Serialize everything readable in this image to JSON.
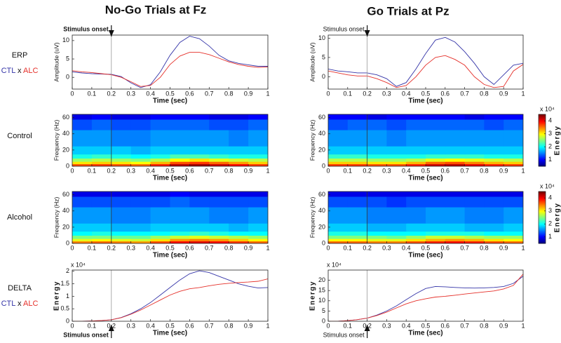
{
  "figure": {
    "titles": [
      "No-Go Trials at Fz",
      "Go Trials at Pz"
    ],
    "row_labels": [
      "ERP",
      "Control",
      "Alcohol",
      "DELTA"
    ],
    "legend_joiner": "x"
  },
  "chart_data": [
    {
      "type": "line",
      "xlabel": "Time (sec)",
      "ylabel": "Amplitude (uV)",
      "x": [
        0,
        0.05,
        0.1,
        0.15,
        0.2,
        0.25,
        0.3,
        0.35,
        0.4,
        0.45,
        0.5,
        0.55,
        0.6,
        0.65,
        0.7,
        0.75,
        0.8,
        0.85,
        0.9,
        0.95,
        1
      ],
      "series": [
        {
          "name": "CTL",
          "color": "#3535a8",
          "values": [
            1.5,
            1.2,
            1.0,
            0.9,
            0.8,
            0.2,
            -1.5,
            -2.8,
            -2.0,
            1.5,
            6,
            9.5,
            11.2,
            10.5,
            8.5,
            6,
            4.5,
            3.8,
            3.4,
            3.0,
            3.0
          ]
        },
        {
          "name": "ALC",
          "color": "#e5302a",
          "values": [
            1.8,
            1.5,
            1.3,
            1.0,
            0.7,
            0.0,
            -1.2,
            -2.5,
            -2.2,
            0,
            3.5,
            5.8,
            6.8,
            6.8,
            6.2,
            5.2,
            4.2,
            3.5,
            3.0,
            2.7,
            2.8
          ]
        }
      ],
      "xlim": [
        0,
        1
      ],
      "xticks": [
        0,
        0.1,
        0.2,
        0.3,
        0.4,
        0.5,
        0.6,
        0.7,
        0.8,
        0.9,
        1
      ],
      "ylim": [
        -3.2,
        11.5
      ],
      "yticks": [
        0,
        5,
        10
      ],
      "vline": 0.2,
      "annotation": {
        "text": "Stimulus onset",
        "side": "top",
        "bold": true
      }
    },
    {
      "type": "line",
      "xlabel": "Time (sec)",
      "ylabel": "Amplitude (uV)",
      "x": [
        0,
        0.05,
        0.1,
        0.15,
        0.2,
        0.25,
        0.3,
        0.35,
        0.4,
        0.45,
        0.5,
        0.55,
        0.6,
        0.65,
        0.7,
        0.75,
        0.8,
        0.85,
        0.9,
        0.95,
        1
      ],
      "series": [
        {
          "color": "#3535a8",
          "values": [
            2,
            1.5,
            1.3,
            1.0,
            1.0,
            0.5,
            -0.5,
            -2.5,
            -1.5,
            2,
            6,
            9.5,
            10.2,
            9,
            6.5,
            3.5,
            0,
            -2,
            0.5,
            3,
            3.5
          ]
        },
        {
          "color": "#e5302a",
          "values": [
            1.5,
            1.0,
            0.5,
            0.2,
            0.2,
            -0.5,
            -1.5,
            -2.8,
            -2.3,
            0,
            3,
            5,
            5.5,
            4.5,
            3,
            0,
            -2,
            -2.8,
            -2.5,
            1.5,
            3.2
          ]
        }
      ],
      "xlim": [
        0,
        1
      ],
      "xticks": [
        0,
        0.1,
        0.2,
        0.3,
        0.4,
        0.5,
        0.6,
        0.7,
        0.8,
        0.9,
        1
      ],
      "ylim": [
        -3.2,
        10.8
      ],
      "yticks": [
        0,
        5,
        10
      ],
      "vline": 0.2,
      "annotation": {
        "text": "Stimulus onset",
        "side": "top",
        "bold": false
      }
    },
    {
      "type": "heatmap",
      "xlabel": "Time (sec)",
      "ylabel": "Frequency (Hz)",
      "colormap": "jet",
      "clim": [
        0.5,
        4.5
      ],
      "x_edges": [
        0,
        0.1,
        0.2,
        0.3,
        0.4,
        0.5,
        0.6,
        0.7,
        0.8,
        0.9,
        1
      ],
      "y_edges": [
        0,
        3,
        6,
        10,
        15,
        25,
        45,
        58,
        64
      ],
      "z": [
        [
          3.7,
          3.8,
          3.7,
          3.6,
          3.9,
          4.3,
          4.4,
          4.2,
          4.0,
          3.8
        ],
        [
          3.1,
          3.2,
          3.1,
          3.0,
          3.3,
          3.7,
          3.8,
          3.6,
          3.4,
          3.2
        ],
        [
          2.6,
          2.7,
          2.6,
          2.5,
          2.7,
          3.0,
          3.1,
          2.9,
          2.8,
          2.7
        ],
        [
          2.1,
          2.2,
          2.1,
          2.0,
          2.1,
          2.3,
          2.3,
          2.2,
          2.1,
          2.1
        ],
        [
          1.8,
          1.8,
          1.8,
          1.7,
          1.8,
          1.8,
          1.8,
          1.8,
          1.8,
          1.8
        ],
        [
          1.6,
          1.6,
          1.5,
          1.5,
          1.6,
          1.6,
          1.6,
          1.6,
          1.5,
          1.6
        ],
        [
          1.3,
          1.4,
          1.3,
          1.3,
          1.4,
          1.4,
          1.4,
          1.3,
          1.3,
          1.4
        ],
        [
          0.9,
          1.0,
          0.9,
          0.9,
          1.0,
          1.0,
          1.0,
          0.9,
          0.9,
          1.0
        ]
      ],
      "xlim": [
        0,
        1
      ],
      "xticks": [
        0,
        0.1,
        0.2,
        0.3,
        0.4,
        0.5,
        0.6,
        0.7,
        0.8,
        0.9,
        1
      ],
      "ylim": [
        0,
        64
      ],
      "yticks": [
        0,
        20,
        40,
        60
      ],
      "vline": 0.2
    },
    {
      "type": "heatmap",
      "xlabel": "Time (sec)",
      "ylabel": "Frequency (Hz)",
      "colormap": "jet",
      "clim": [
        0.5,
        4.5
      ],
      "x_edges": [
        0,
        0.1,
        0.2,
        0.3,
        0.4,
        0.5,
        0.6,
        0.7,
        0.8,
        0.9,
        1
      ],
      "y_edges": [
        0,
        3,
        6,
        10,
        15,
        25,
        45,
        58,
        64
      ],
      "z": [
        [
          3.8,
          3.8,
          3.7,
          3.7,
          3.9,
          4.2,
          4.3,
          4.1,
          3.9,
          3.8
        ],
        [
          3.2,
          3.2,
          3.1,
          3.1,
          3.3,
          3.6,
          3.7,
          3.5,
          3.3,
          3.2
        ],
        [
          2.7,
          2.7,
          2.6,
          2.6,
          2.7,
          2.9,
          3.0,
          2.9,
          2.8,
          2.7
        ],
        [
          2.2,
          2.2,
          2.1,
          2.1,
          2.1,
          2.2,
          2.2,
          2.2,
          2.1,
          2.1
        ],
        [
          1.8,
          1.8,
          1.8,
          1.8,
          1.8,
          1.8,
          1.8,
          1.8,
          1.8,
          1.8
        ],
        [
          1.6,
          1.6,
          1.6,
          1.5,
          1.6,
          1.6,
          1.6,
          1.6,
          1.6,
          1.6
        ],
        [
          1.3,
          1.4,
          1.4,
          1.3,
          1.4,
          1.4,
          1.4,
          1.4,
          1.3,
          1.4
        ],
        [
          1.0,
          1.0,
          0.9,
          1.0,
          1.0,
          1.0,
          1.0,
          0.9,
          1.0,
          1.0
        ]
      ],
      "xlim": [
        0,
        1
      ],
      "xticks": [
        0,
        0.1,
        0.2,
        0.3,
        0.4,
        0.5,
        0.6,
        0.7,
        0.8,
        0.9,
        1
      ],
      "ylim": [
        0,
        64
      ],
      "yticks": [
        0,
        20,
        40,
        60
      ],
      "vline": 0.2,
      "colorbar": {
        "label": "Energy",
        "multiplier": "x 10⁴",
        "ticks": [
          1,
          2,
          3,
          4
        ]
      }
    },
    {
      "type": "heatmap",
      "xlabel": "Time (sec)",
      "ylabel": "Frequency (Hz)",
      "colormap": "jet",
      "clim": [
        0.5,
        4.5
      ],
      "x_edges": [
        0,
        0.1,
        0.2,
        0.3,
        0.4,
        0.5,
        0.6,
        0.7,
        0.8,
        0.9,
        1
      ],
      "y_edges": [
        0,
        3,
        6,
        10,
        15,
        25,
        45,
        58,
        64
      ],
      "z": [
        [
          3.5,
          3.6,
          3.5,
          3.4,
          3.7,
          4.0,
          4.1,
          4.0,
          3.8,
          3.6
        ],
        [
          2.9,
          3.0,
          2.9,
          2.8,
          3.1,
          3.4,
          3.5,
          3.4,
          3.2,
          3.0
        ],
        [
          2.5,
          2.5,
          2.4,
          2.4,
          2.6,
          2.8,
          2.9,
          2.8,
          2.7,
          2.6
        ],
        [
          2.0,
          2.1,
          2.0,
          2.0,
          2.0,
          2.1,
          2.2,
          2.1,
          2.0,
          2.0
        ],
        [
          1.8,
          1.8,
          1.7,
          1.7,
          1.8,
          1.8,
          1.8,
          1.8,
          1.7,
          1.8
        ],
        [
          1.6,
          1.6,
          1.5,
          1.5,
          1.6,
          1.6,
          1.6,
          1.5,
          1.5,
          1.6
        ],
        [
          1.3,
          1.3,
          1.3,
          1.3,
          1.3,
          1.4,
          1.3,
          1.3,
          1.3,
          1.3
        ],
        [
          0.9,
          0.9,
          0.9,
          0.9,
          0.9,
          1.0,
          0.9,
          0.9,
          0.9,
          0.9
        ]
      ],
      "xlim": [
        0,
        1
      ],
      "xticks": [
        0,
        0.1,
        0.2,
        0.3,
        0.4,
        0.5,
        0.6,
        0.7,
        0.8,
        0.9,
        1
      ],
      "ylim": [
        0,
        64
      ],
      "yticks": [
        0,
        20,
        40,
        60
      ],
      "vline": 0.2
    },
    {
      "type": "heatmap",
      "xlabel": "Time (sec)",
      "ylabel": "Frequency (Hz)",
      "colormap": "jet",
      "clim": [
        0.5,
        4.5
      ],
      "x_edges": [
        0,
        0.1,
        0.2,
        0.3,
        0.4,
        0.5,
        0.6,
        0.7,
        0.8,
        0.9,
        1
      ],
      "y_edges": [
        0,
        3,
        6,
        10,
        15,
        25,
        45,
        58,
        64
      ],
      "z": [
        [
          3.6,
          3.6,
          3.5,
          3.5,
          3.7,
          3.9,
          4.0,
          3.9,
          3.7,
          3.6
        ],
        [
          3.0,
          3.0,
          2.9,
          2.9,
          3.1,
          3.3,
          3.4,
          3.3,
          3.1,
          3.0
        ],
        [
          2.5,
          2.5,
          2.5,
          2.4,
          2.6,
          2.8,
          2.8,
          2.7,
          2.6,
          2.6
        ],
        [
          2.1,
          2.1,
          2.0,
          2.0,
          2.0,
          2.1,
          2.1,
          2.1,
          2.0,
          2.0
        ],
        [
          1.8,
          1.8,
          1.7,
          1.7,
          1.8,
          1.8,
          1.8,
          1.7,
          1.7,
          1.8
        ],
        [
          1.6,
          1.6,
          1.5,
          1.5,
          1.5,
          1.6,
          1.6,
          1.5,
          1.5,
          1.6
        ],
        [
          1.3,
          1.3,
          1.3,
          1.2,
          1.3,
          1.3,
          1.3,
          1.3,
          1.3,
          1.3
        ],
        [
          0.9,
          0.9,
          0.9,
          0.9,
          0.9,
          0.9,
          0.9,
          0.9,
          0.9,
          0.9
        ]
      ],
      "xlim": [
        0,
        1
      ],
      "xticks": [
        0,
        0.1,
        0.2,
        0.3,
        0.4,
        0.5,
        0.6,
        0.7,
        0.8,
        0.9,
        1
      ],
      "ylim": [
        0,
        64
      ],
      "yticks": [
        0,
        20,
        40,
        60
      ],
      "vline": 0.2,
      "colorbar": {
        "label": "Energy",
        "multiplier": "x 10⁴",
        "ticks": [
          1,
          2,
          3,
          4
        ]
      }
    },
    {
      "type": "line",
      "xlabel": "Time (sec)",
      "ylabel": "Energy",
      "y_multiplier": "x 10⁴",
      "x": [
        0,
        0.05,
        0.1,
        0.15,
        0.2,
        0.25,
        0.3,
        0.35,
        0.4,
        0.45,
        0.5,
        0.55,
        0.6,
        0.65,
        0.7,
        0.75,
        0.8,
        0.85,
        0.9,
        0.95,
        1
      ],
      "series": [
        {
          "name": "CTL",
          "color": "#3535a8",
          "values": [
            0,
            0,
            0.01,
            0.03,
            0.06,
            0.15,
            0.3,
            0.5,
            0.75,
            1.05,
            1.35,
            1.65,
            1.9,
            2.02,
            1.95,
            1.8,
            1.65,
            1.5,
            1.4,
            1.33,
            1.35
          ]
        },
        {
          "name": "ALC",
          "color": "#e5302a",
          "values": [
            0,
            0,
            0.01,
            0.03,
            0.06,
            0.14,
            0.28,
            0.45,
            0.65,
            0.85,
            1.05,
            1.2,
            1.3,
            1.35,
            1.42,
            1.48,
            1.52,
            1.55,
            1.57,
            1.6,
            1.7
          ]
        }
      ],
      "xlim": [
        0,
        1
      ],
      "xticks": [
        0,
        0.1,
        0.2,
        0.3,
        0.4,
        0.5,
        0.6,
        0.7,
        0.8,
        0.9,
        1
      ],
      "ylim": [
        0,
        2.05
      ],
      "yticks": [
        0,
        0.5,
        1,
        1.5,
        2
      ],
      "vline": 0.2,
      "annotation": {
        "text": "Stimulus onset",
        "side": "bottom",
        "bold": true
      }
    },
    {
      "type": "line",
      "xlabel": "Time (sec)",
      "ylabel": "Energy",
      "y_multiplier": "x 10⁴",
      "x": [
        0,
        0.05,
        0.1,
        0.15,
        0.2,
        0.25,
        0.3,
        0.35,
        0.4,
        0.45,
        0.5,
        0.55,
        0.6,
        0.65,
        0.7,
        0.75,
        0.8,
        0.85,
        0.9,
        0.95,
        1
      ],
      "series": [
        {
          "color": "#3535a8",
          "values": [
            0,
            0,
            0.3,
            0.8,
            1.5,
            3,
            5,
            7.5,
            10.5,
            13.5,
            16,
            17,
            16.8,
            16.5,
            16.3,
            16.2,
            16.3,
            16.5,
            17,
            18.5,
            22
          ]
        },
        {
          "color": "#e5302a",
          "values": [
            0,
            0,
            0.3,
            0.8,
            1.5,
            2.8,
            4.5,
            6.5,
            8.5,
            10,
            11,
            11.8,
            12.2,
            12.7,
            13.3,
            13.8,
            14.3,
            14.8,
            15.8,
            17.5,
            23
          ]
        }
      ],
      "xlim": [
        0,
        1
      ],
      "xticks": [
        0,
        0.1,
        0.2,
        0.3,
        0.4,
        0.5,
        0.6,
        0.7,
        0.8,
        0.9,
        1
      ],
      "ylim": [
        0,
        25
      ],
      "yticks": [
        0,
        5,
        10,
        15,
        20
      ],
      "vline": 0.2,
      "annotation": {
        "text": "Stimulus onset",
        "side": "bottom",
        "bold": false
      }
    }
  ]
}
